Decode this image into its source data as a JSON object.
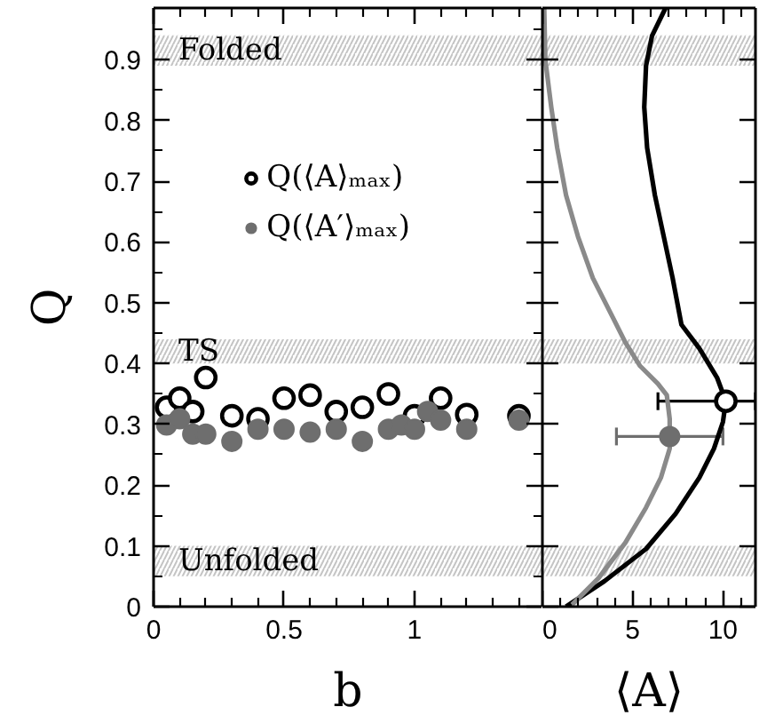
{
  "chart_data": [
    {
      "type": "scatter",
      "xlabel": "b",
      "ylabel": "Q",
      "marker": "circle",
      "legend": "top left",
      "xlim": [
        0,
        1.49
      ],
      "ylim": [
        0,
        0.985
      ],
      "xticks": [
        0,
        {
          "value": 0.1,
          "label": null
        },
        {
          "value": 0.2,
          "label": null
        },
        {
          "value": 0.3,
          "label": null
        },
        {
          "value": 0.4,
          "label": null
        },
        0.5,
        {
          "value": 0.6,
          "label": null
        },
        {
          "value": 0.7,
          "label": null
        },
        {
          "value": 0.8,
          "label": null
        },
        {
          "value": 0.9,
          "label": null
        },
        1,
        {
          "value": 1.1,
          "label": null
        },
        {
          "value": 1.2,
          "label": null
        },
        {
          "value": 1.3,
          "label": null
        },
        {
          "value": 1.4,
          "label": null
        }
      ],
      "yticks": [
        0,
        {
          "value": 0.05,
          "label": null
        },
        0.1,
        {
          "value": 0.15,
          "label": null
        },
        0.2,
        {
          "value": 0.25,
          "label": null
        },
        0.3,
        {
          "value": 0.35,
          "label": null
        },
        0.4,
        {
          "value": 0.45,
          "label": null
        },
        0.5,
        {
          "value": 0.55,
          "label": null
        },
        0.6,
        {
          "value": 0.65,
          "label": null
        },
        0.7,
        {
          "value": 0.75,
          "label": null
        },
        0.8,
        {
          "value": 0.85,
          "label": null
        },
        0.9,
        {
          "value": 0.95,
          "label": null
        }
      ],
      "bands": [
        {
          "axis": "y",
          "from": 0.89,
          "to": 0.94,
          "label": "Folded",
          "color": "#c4c4c4"
        },
        {
          "axis": "y",
          "from": 0.4,
          "to": 0.44,
          "label": "TS",
          "color": "#c4c4c4"
        },
        {
          "axis": "y",
          "from": 0.05,
          "to": 0.1,
          "label": "Unfolded",
          "color": "#c4c4c4"
        }
      ],
      "series": [
        {
          "name": "Q(⟨A⟩ₘₐₓ)",
          "color": "#000000",
          "x": [
            0.05,
            0.1,
            0.15,
            0.2,
            0.3,
            0.4,
            0.5,
            0.6,
            0.7,
            0.8,
            0.9,
            1.0,
            1.1,
            1.2,
            1.4
          ],
          "values": [
            0.328,
            0.343,
            0.321,
            0.377,
            0.314,
            0.309,
            0.343,
            0.348,
            0.321,
            0.328,
            0.35,
            0.314,
            0.343,
            0.316,
            0.314
          ]
        },
        {
          "name": "Q(⟨A′⟩ₘₐₓ)",
          "color": "#6e6e6e",
          "x": [
            0.05,
            0.1,
            0.15,
            0.2,
            0.3,
            0.4,
            0.5,
            0.6,
            0.7,
            0.8,
            0.9,
            0.95,
            1.0,
            1.05,
            1.1,
            1.2,
            1.4
          ],
          "values": [
            0.299,
            0.309,
            0.284,
            0.284,
            0.272,
            0.292,
            0.292,
            0.287,
            0.292,
            0.272,
            0.292,
            0.299,
            0.292,
            0.321,
            0.307,
            0.292,
            0.307
          ]
        }
      ]
    },
    {
      "type": "line",
      "xlabel": "⟨A⟩",
      "tick_labels": "x",
      "xlim": [
        0,
        11.8
      ],
      "ylim": [
        0,
        0.985
      ],
      "xticks": [
        0,
        {
          "value": 1,
          "label": null
        },
        {
          "value": 2,
          "label": null
        },
        {
          "value": 3,
          "label": null
        },
        {
          "value": 4,
          "label": null
        },
        5,
        {
          "value": 6,
          "label": null
        },
        {
          "value": 7,
          "label": null
        },
        {
          "value": 8,
          "label": null
        },
        {
          "value": 9,
          "label": null
        },
        10,
        {
          "value": 11,
          "label": null
        }
      ],
      "yticks": [
        0,
        0.1,
        0.2,
        0.3,
        0.4,
        0.5,
        0.6,
        0.7,
        0.8,
        0.9
      ],
      "bands": [
        {
          "axis": "y",
          "from": 0.89,
          "to": 0.94,
          "color": "#c4c4c4"
        },
        {
          "axis": "y",
          "from": 0.4,
          "to": 0.44,
          "color": "#c4c4c4"
        },
        {
          "axis": "y",
          "from": 0.05,
          "to": 0.1,
          "color": "#c4c4c4"
        }
      ],
      "series": [
        {
          "color": "#000000",
          "x": [
            1.31,
            3.44,
            5.74,
            7.38,
            8.69,
            9.5,
            10.0,
            10.16,
            9.67,
            8.69,
            7.7,
            7.21,
            6.72,
            6.23,
            5.8,
            5.64,
            5.74,
            6.07,
            6.82
          ],
          "values": [
            0,
            0.042,
            0.095,
            0.153,
            0.212,
            0.26,
            0.304,
            0.338,
            0.377,
            0.425,
            0.464,
            0.541,
            0.609,
            0.677,
            0.755,
            0.822,
            0.89,
            0.939,
            0.985
          ]
        },
        {
          "color": "#8a8a8a",
          "x": [
            1.64,
            3.11,
            4.59,
            5.74,
            6.56,
            7.05,
            7.05,
            6.89,
            6.39,
            5.41,
            4.59,
            3.93,
            2.79,
            1.97,
            1.31,
            0.82,
            0.49,
            0.16,
            0.1
          ],
          "values": [
            0.003,
            0.047,
            0.105,
            0.163,
            0.212,
            0.26,
            0.309,
            0.348,
            0.367,
            0.396,
            0.435,
            0.474,
            0.541,
            0.609,
            0.677,
            0.755,
            0.822,
            0.9,
            0.985
          ]
        },
        {
          "type": "scatter",
          "marker": "circle",
          "color": "#000000",
          "x": [
            10.16
          ],
          "values": [
            0.338
          ],
          "xerrors": [
            [
              6.4,
              11.8
            ]
          ]
        },
        {
          "type": "scatter",
          "marker": "circle",
          "color": "#6e6e6e",
          "x": [
            7.05
          ],
          "values": [
            0.28
          ],
          "xerrors": [
            [
              4.1,
              10.0
            ]
          ]
        }
      ]
    }
  ]
}
